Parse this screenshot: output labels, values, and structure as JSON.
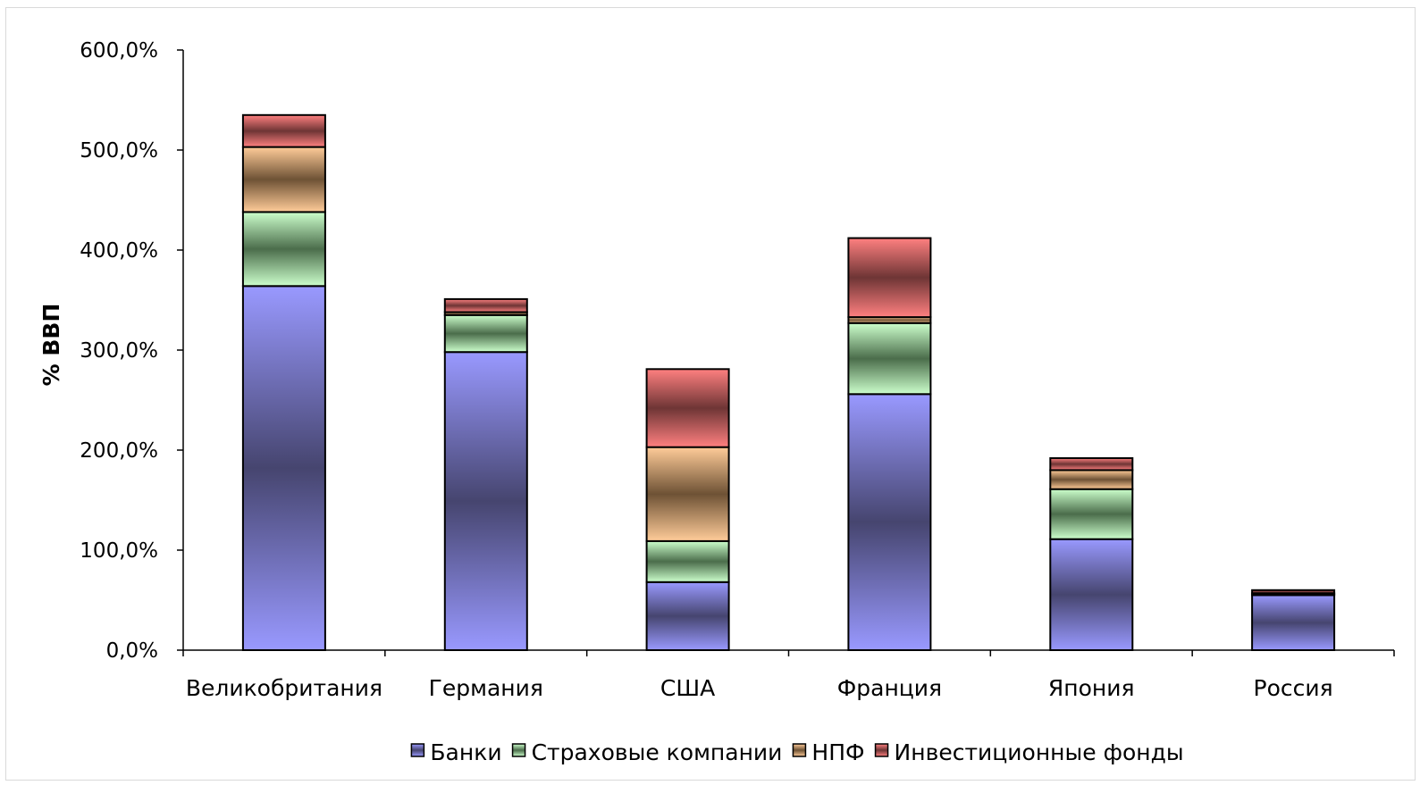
{
  "chart_data": {
    "type": "bar",
    "stacked": true,
    "title": "",
    "xlabel": "",
    "ylabel": "% ВВП",
    "ylim": [
      0,
      600
    ],
    "yticks": [
      0,
      100,
      200,
      300,
      400,
      500,
      600
    ],
    "ytick_labels": [
      "0,0%",
      "100,0%",
      "200,0%",
      "300,0%",
      "400,0%",
      "500,0%",
      "600,0%"
    ],
    "categories": [
      "Великобритания",
      "Германия",
      "США",
      "Франция",
      "Япония",
      "Россия"
    ],
    "series": [
      {
        "name": "Банки",
        "values": [
          364,
          298,
          68,
          256,
          111,
          55
        ],
        "color": "#9999ff",
        "dark": "#46456f"
      },
      {
        "name": "Страховые компании",
        "values": [
          74,
          37,
          41,
          71,
          50,
          1
        ],
        "color": "#ccffcc",
        "dark": "#4b6d4b"
      },
      {
        "name": "НПФ",
        "values": [
          65,
          3,
          94,
          6,
          19,
          1
        ],
        "color": "#ffcc99",
        "dark": "#6e5235"
      },
      {
        "name": "Инвестиционные фонды",
        "values": [
          32,
          13,
          78,
          79,
          12,
          3
        ],
        "color": "#ff8080",
        "dark": "#6e3535"
      }
    ],
    "grid": false,
    "legend_position": "bottom"
  }
}
